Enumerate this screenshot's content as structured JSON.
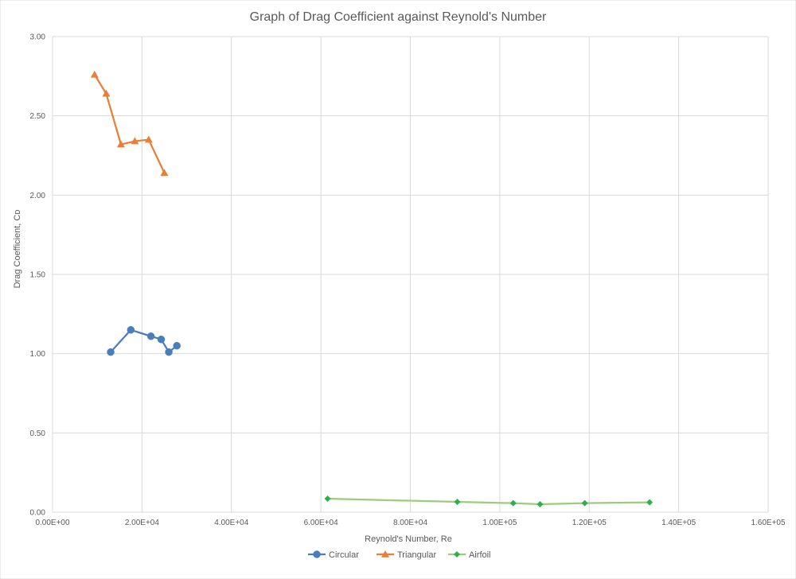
{
  "chart_data": {
    "type": "scatter",
    "title": "Graph of Drag Coefficient against Reynold's Number",
    "xlabel": "Reynold's Number, Re",
    "ylabel": "Drag Coefficient, Cᴅ",
    "xlim": [
      0,
      160000
    ],
    "ylim": [
      0,
      3.0
    ],
    "x_ticks": [
      0,
      20000,
      40000,
      60000,
      80000,
      100000,
      120000,
      140000,
      160000
    ],
    "x_tick_labels": [
      "0.00E+00",
      "2.00E+04",
      "4.00E+04",
      "6.00E+04",
      "8.00E+04",
      "1.00E+05",
      "1.20E+05",
      "1.40E+05",
      "1.60E+05"
    ],
    "y_ticks": [
      0,
      0.5,
      1.0,
      1.5,
      2.0,
      2.5,
      3.0
    ],
    "y_tick_labels": [
      "0.00",
      "0.50",
      "1.00",
      "1.50",
      "2.00",
      "2.50",
      "3.00"
    ],
    "grid": true,
    "legend_position": "bottom",
    "series": [
      {
        "name": "Circular",
        "color": "#4a7ebb",
        "marker": "circle",
        "x": [
          13000,
          17500,
          22000,
          24300,
          26000,
          27800
        ],
        "y": [
          1.01,
          1.15,
          1.11,
          1.09,
          1.01,
          1.05
        ]
      },
      {
        "name": "Triangular",
        "color": "#e97e37",
        "marker": "triangle",
        "x": [
          9400,
          12000,
          15300,
          18400,
          21500,
          25000
        ],
        "y": [
          2.76,
          2.64,
          2.32,
          2.34,
          2.35,
          2.14
        ]
      },
      {
        "name": "Airfoil",
        "color": "#9ccc7c",
        "marker_color": "#2db04b",
        "marker": "diamond",
        "x": [
          61500,
          90500,
          103000,
          109000,
          119000,
          133500
        ],
        "y": [
          0.085,
          0.065,
          0.057,
          0.05,
          0.057,
          0.062
        ]
      }
    ]
  }
}
